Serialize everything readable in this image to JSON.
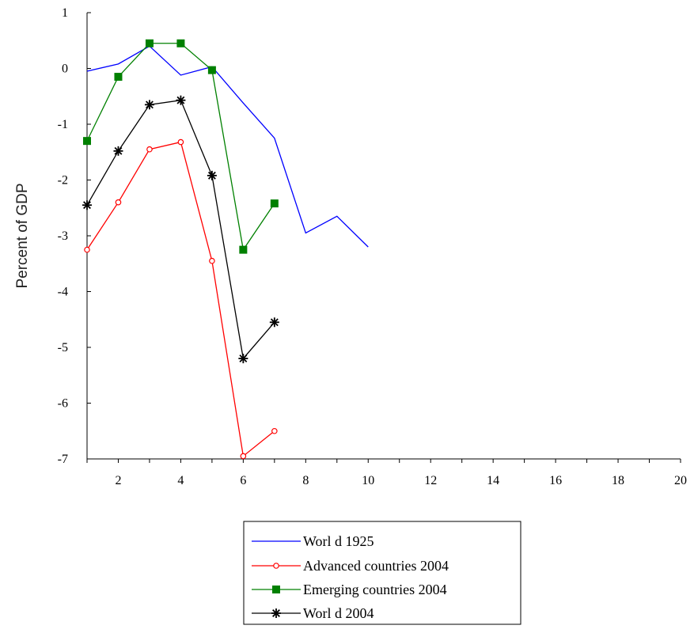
{
  "chart_data": {
    "type": "line",
    "title": "",
    "xlabel": "",
    "ylabel": "Percent of GDP",
    "xlim": [
      1,
      20
    ],
    "ylim": [
      -7,
      1
    ],
    "xticks": [
      2,
      4,
      6,
      8,
      10,
      12,
      14,
      16,
      18,
      20
    ],
    "yticks": [
      1,
      0,
      -1,
      -2,
      -3,
      -4,
      -5,
      -6,
      -7
    ],
    "grid": false,
    "legend_position": "bottom",
    "series": [
      {
        "name": "World 1925",
        "color": "#0000ff",
        "marker": "none",
        "x": [
          1,
          2,
          3,
          4,
          5,
          6,
          7,
          8,
          9,
          10
        ],
        "y": [
          -0.05,
          0.08,
          0.4,
          -0.12,
          0.03,
          -0.62,
          -1.25,
          -2.95,
          -2.65,
          -3.2
        ]
      },
      {
        "name": "Advanced countries 2004",
        "color": "#ff0000",
        "marker": "circle",
        "x": [
          1,
          2,
          3,
          4,
          5,
          6,
          7
        ],
        "y": [
          -3.25,
          -2.4,
          -1.45,
          -1.32,
          -3.45,
          -6.95,
          -6.5
        ]
      },
      {
        "name": "Emerging countries 2004",
        "color": "#008000",
        "marker": "square",
        "x": [
          1,
          2,
          3,
          4,
          5,
          6,
          7
        ],
        "y": [
          -1.3,
          -0.15,
          0.45,
          0.45,
          -0.03,
          -3.25,
          -2.42
        ]
      },
      {
        "name": "World 2004",
        "color": "#000000",
        "marker": "asterisk",
        "x": [
          1,
          2,
          3,
          4,
          5,
          6,
          7
        ],
        "y": [
          -2.45,
          -1.48,
          -0.65,
          -0.57,
          -1.92,
          -5.2,
          -4.55
        ]
      }
    ],
    "legend_labels": [
      "Worl d 1925",
      "Advanced countries 2004",
      "Emerging countries 2004",
      "Worl d 2004"
    ]
  }
}
